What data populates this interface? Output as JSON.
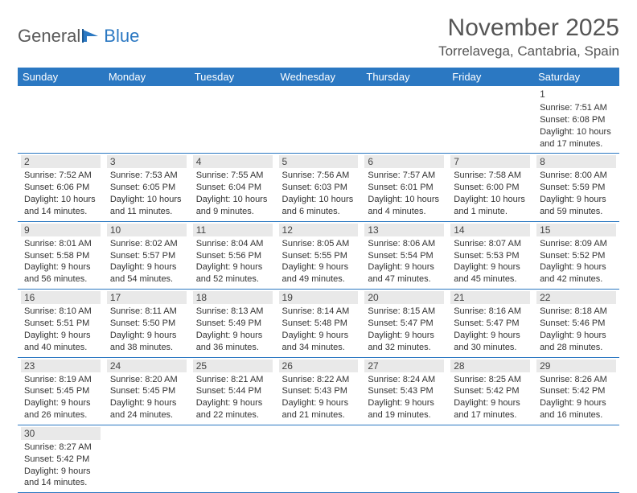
{
  "brand": {
    "part1": "General",
    "part2": "Blue"
  },
  "title": "November 2025",
  "location": "Torrelavega, Cantabria, Spain",
  "header_bg": "#2b78c2",
  "weekdays": [
    "Sunday",
    "Monday",
    "Tuesday",
    "Wednesday",
    "Thursday",
    "Friday",
    "Saturday"
  ],
  "weeks": [
    [
      null,
      null,
      null,
      null,
      null,
      null,
      {
        "d": "1",
        "sr": "7:51 AM",
        "ss": "6:08 PM",
        "dl": "10 hours and 17 minutes."
      }
    ],
    [
      {
        "d": "2",
        "sr": "7:52 AM",
        "ss": "6:06 PM",
        "dl": "10 hours and 14 minutes."
      },
      {
        "d": "3",
        "sr": "7:53 AM",
        "ss": "6:05 PM",
        "dl": "10 hours and 11 minutes."
      },
      {
        "d": "4",
        "sr": "7:55 AM",
        "ss": "6:04 PM",
        "dl": "10 hours and 9 minutes."
      },
      {
        "d": "5",
        "sr": "7:56 AM",
        "ss": "6:03 PM",
        "dl": "10 hours and 6 minutes."
      },
      {
        "d": "6",
        "sr": "7:57 AM",
        "ss": "6:01 PM",
        "dl": "10 hours and 4 minutes."
      },
      {
        "d": "7",
        "sr": "7:58 AM",
        "ss": "6:00 PM",
        "dl": "10 hours and 1 minute."
      },
      {
        "d": "8",
        "sr": "8:00 AM",
        "ss": "5:59 PM",
        "dl": "9 hours and 59 minutes."
      }
    ],
    [
      {
        "d": "9",
        "sr": "8:01 AM",
        "ss": "5:58 PM",
        "dl": "9 hours and 56 minutes."
      },
      {
        "d": "10",
        "sr": "8:02 AM",
        "ss": "5:57 PM",
        "dl": "9 hours and 54 minutes."
      },
      {
        "d": "11",
        "sr": "8:04 AM",
        "ss": "5:56 PM",
        "dl": "9 hours and 52 minutes."
      },
      {
        "d": "12",
        "sr": "8:05 AM",
        "ss": "5:55 PM",
        "dl": "9 hours and 49 minutes."
      },
      {
        "d": "13",
        "sr": "8:06 AM",
        "ss": "5:54 PM",
        "dl": "9 hours and 47 minutes."
      },
      {
        "d": "14",
        "sr": "8:07 AM",
        "ss": "5:53 PM",
        "dl": "9 hours and 45 minutes."
      },
      {
        "d": "15",
        "sr": "8:09 AM",
        "ss": "5:52 PM",
        "dl": "9 hours and 42 minutes."
      }
    ],
    [
      {
        "d": "16",
        "sr": "8:10 AM",
        "ss": "5:51 PM",
        "dl": "9 hours and 40 minutes."
      },
      {
        "d": "17",
        "sr": "8:11 AM",
        "ss": "5:50 PM",
        "dl": "9 hours and 38 minutes."
      },
      {
        "d": "18",
        "sr": "8:13 AM",
        "ss": "5:49 PM",
        "dl": "9 hours and 36 minutes."
      },
      {
        "d": "19",
        "sr": "8:14 AM",
        "ss": "5:48 PM",
        "dl": "9 hours and 34 minutes."
      },
      {
        "d": "20",
        "sr": "8:15 AM",
        "ss": "5:47 PM",
        "dl": "9 hours and 32 minutes."
      },
      {
        "d": "21",
        "sr": "8:16 AM",
        "ss": "5:47 PM",
        "dl": "9 hours and 30 minutes."
      },
      {
        "d": "22",
        "sr": "8:18 AM",
        "ss": "5:46 PM",
        "dl": "9 hours and 28 minutes."
      }
    ],
    [
      {
        "d": "23",
        "sr": "8:19 AM",
        "ss": "5:45 PM",
        "dl": "9 hours and 26 minutes."
      },
      {
        "d": "24",
        "sr": "8:20 AM",
        "ss": "5:45 PM",
        "dl": "9 hours and 24 minutes."
      },
      {
        "d": "25",
        "sr": "8:21 AM",
        "ss": "5:44 PM",
        "dl": "9 hours and 22 minutes."
      },
      {
        "d": "26",
        "sr": "8:22 AM",
        "ss": "5:43 PM",
        "dl": "9 hours and 21 minutes."
      },
      {
        "d": "27",
        "sr": "8:24 AM",
        "ss": "5:43 PM",
        "dl": "9 hours and 19 minutes."
      },
      {
        "d": "28",
        "sr": "8:25 AM",
        "ss": "5:42 PM",
        "dl": "9 hours and 17 minutes."
      },
      {
        "d": "29",
        "sr": "8:26 AM",
        "ss": "5:42 PM",
        "dl": "9 hours and 16 minutes."
      }
    ],
    [
      {
        "d": "30",
        "sr": "8:27 AM",
        "ss": "5:42 PM",
        "dl": "9 hours and 14 minutes."
      },
      null,
      null,
      null,
      null,
      null,
      null
    ]
  ],
  "labels": {
    "sunrise": "Sunrise: ",
    "sunset": "Sunset: ",
    "daylight": "Daylight: "
  }
}
